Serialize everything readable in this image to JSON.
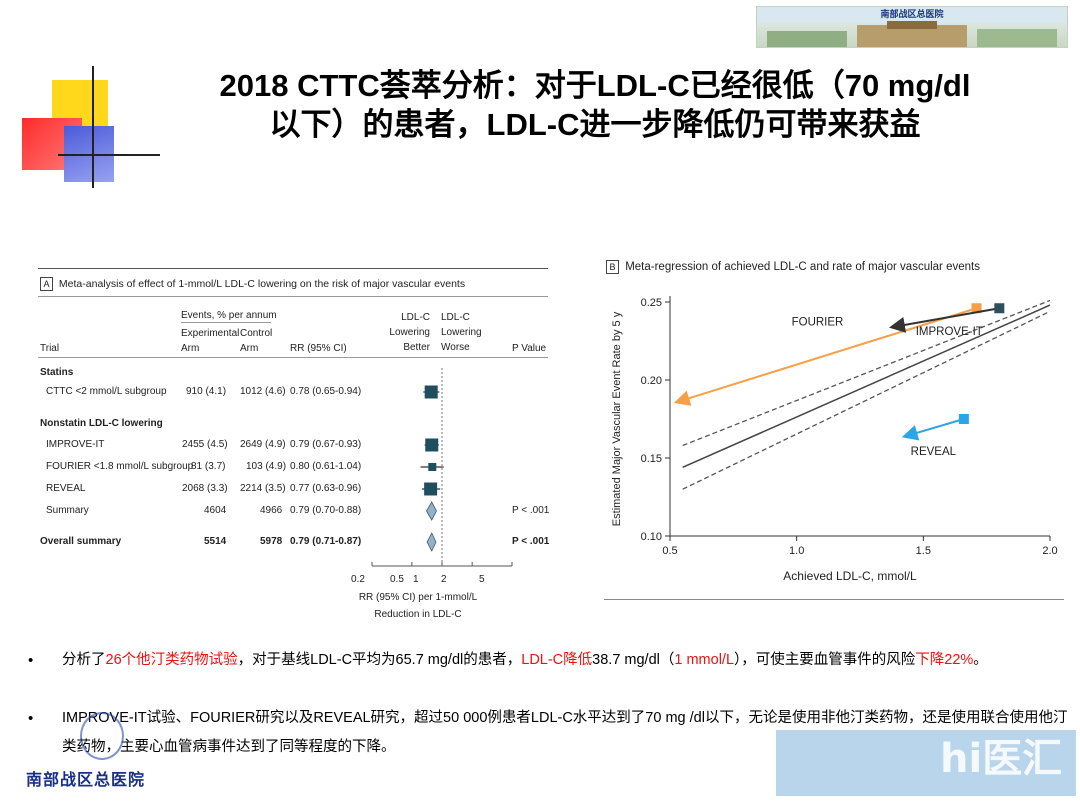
{
  "header": {
    "banner_text": "南部战区总医院",
    "title_line1": "2018 CTTC荟萃分析：对于LDL-C已经很低（70 mg/dl",
    "title_line2": "以下）的患者，LDL-C进一步降低仍可带来获益"
  },
  "panel_a": {
    "tag": "A",
    "heading": "Meta-analysis of effect of 1-mmol/L LDL-C lowering on the risk of major vascular events",
    "col_events": "Events, % per annum",
    "col_exp": "Experimental",
    "col_arm1": "Arm",
    "col_ctrl": "Control",
    "col_arm2": "Arm",
    "col_trial": "Trial",
    "col_rr": "RR (95% CI)",
    "col_ldl1_a": "LDL-C",
    "col_ldl1_b": "Lowering",
    "col_ldl1_c": "Better",
    "col_ldl2_a": "LDL-C",
    "col_ldl2_b": "Lowering",
    "col_ldl2_c": "Worse",
    "col_p": "P Value",
    "sec_statins": "Statins",
    "sec_nonstatin": "Nonstatin LDL-C lowering",
    "rows": [
      {
        "trial": "CTTC <2 mmol/L subgroup",
        "exp": "910 (4.1)",
        "ctrl": "1012 (4.6)",
        "rr": "0.78 (0.65-0.94)",
        "p": ""
      },
      {
        "trial": "IMPROVE-IT",
        "exp": "2455 (4.5)",
        "ctrl": "2649 (4.9)",
        "rr": "0.79 (0.67-0.93)",
        "p": ""
      },
      {
        "trial": "FOURIER <1.8 mmol/L subgroup",
        "exp": "81 (3.7)",
        "ctrl": "103 (4.9)",
        "rr": "0.80 (0.61-1.04)",
        "p": ""
      },
      {
        "trial": "REVEAL",
        "exp": "2068 (3.3)",
        "ctrl": "2214 (3.5)",
        "rr": "0.77 (0.63-0.96)",
        "p": ""
      },
      {
        "trial": "Summary",
        "exp": "4604",
        "ctrl": "4966",
        "rr": "0.79 (0.70-0.88)",
        "p": "P < .001"
      },
      {
        "trial": "Overall summary",
        "exp": "5514",
        "ctrl": "5978",
        "rr": "0.79 (0.71-0.87)",
        "p": "P < .001"
      }
    ],
    "axis_ticks": [
      "0.2",
      "0.5",
      "1",
      "2",
      "5"
    ],
    "axis_label_1": "RR (95% CI) per 1-mmol/L",
    "axis_label_2": "Reduction in LDL-C"
  },
  "panel_b": {
    "tag": "B",
    "heading": "Meta-regression of achieved LDL-C and rate of major vascular events"
  },
  "chart_data": [
    {
      "type": "forest",
      "title": "Meta-analysis of effect of 1-mmol/L LDL-C lowering on the risk of major vascular events",
      "xlabel": "RR (95% CI) per 1-mmol/L Reduction in LDL-C",
      "xscale": "log",
      "xlim": [
        0.2,
        5
      ],
      "xticks": [
        0.2,
        0.5,
        1,
        2,
        5
      ],
      "series": [
        {
          "name": "CTTC <2 mmol/L subgroup",
          "rr": 0.78,
          "low": 0.65,
          "high": 0.94,
          "marker": "square"
        },
        {
          "name": "IMPROVE-IT",
          "rr": 0.79,
          "low": 0.67,
          "high": 0.93,
          "marker": "square"
        },
        {
          "name": "FOURIER <1.8 mmol/L subgroup",
          "rr": 0.8,
          "low": 0.61,
          "high": 1.04,
          "marker": "square"
        },
        {
          "name": "REVEAL",
          "rr": 0.77,
          "low": 0.63,
          "high": 0.96,
          "marker": "square"
        },
        {
          "name": "Summary",
          "rr": 0.79,
          "low": 0.7,
          "high": 0.88,
          "marker": "diamond"
        },
        {
          "name": "Overall summary",
          "rr": 0.79,
          "low": 0.71,
          "high": 0.87,
          "marker": "diamond"
        }
      ]
    },
    {
      "type": "line",
      "title": "Meta-regression of achieved LDL-C and rate of major vascular events",
      "xlabel": "Achieved LDL-C, mmol/L",
      "ylabel": "Estimated Major Vascular Event Rate by 5 y",
      "xlim": [
        0.5,
        2.0
      ],
      "ylim": [
        0.1,
        0.25
      ],
      "xticks": [
        0.5,
        1.0,
        1.5,
        2.0
      ],
      "xtick_labels": [
        "0.5",
        "1.0",
        "1.5",
        "2.0"
      ],
      "yticks": [
        0.1,
        0.15,
        0.2,
        0.25
      ],
      "ytick_labels": [
        "0.10",
        "0.15",
        "0.20",
        "0.25"
      ],
      "regression_line": [
        [
          0.55,
          0.144
        ],
        [
          2.0,
          0.248
        ]
      ],
      "ci_upper": [
        [
          0.55,
          0.158
        ],
        [
          2.0,
          0.251
        ]
      ],
      "ci_lower": [
        [
          0.55,
          0.13
        ],
        [
          2.0,
          0.244
        ]
      ],
      "arrows": [
        {
          "name": "FOURIER",
          "from": [
            1.71,
            0.246
          ],
          "to": [
            0.53,
            0.186
          ],
          "color": "#f5a046"
        },
        {
          "name": "IMPROVE-IT",
          "from": [
            1.8,
            0.246
          ],
          "to": [
            1.38,
            0.234
          ],
          "color": "#333333"
        },
        {
          "name": "REVEAL",
          "from": [
            1.66,
            0.175
          ],
          "to": [
            1.43,
            0.164
          ],
          "color": "#2aa6e8"
        }
      ]
    }
  ],
  "bullets": {
    "b1_a": "分析了",
    "b1_b": "26个他汀类药物试验",
    "b1_c": "，对于基线LDL-C平均为65.7 mg/dl的患者，",
    "b1_d": "LDL-C降低",
    "b1_e": "38.7 mg/dl（",
    "b1_f": "1 mmol/L",
    "b1_g": "），可使主要血管事",
    "b1_h": "件的风险",
    "b1_i": "下降22%",
    "b1_j": "。",
    "b2_a": "IMPROVE-IT试验、FOURIER研究以及REVEAL研究，超过50 000例患者LDL-C水平达到了70 mg /dl以下，无论是使用非他汀",
    "b2_b": "类药物，还是使用联合使用他汀类药物，主要心血管病事件达到了同等程度的下降。"
  },
  "footer": {
    "hospital": "南部战区总医院",
    "watermark": "hi医汇"
  },
  "colors": {
    "fourier": "#f5a046",
    "improve": "#333333",
    "reveal": "#2aa6e8",
    "forest_box": "#1f4f5f",
    "diamond": "#8fb3c8",
    "red_text": "#e11111"
  }
}
